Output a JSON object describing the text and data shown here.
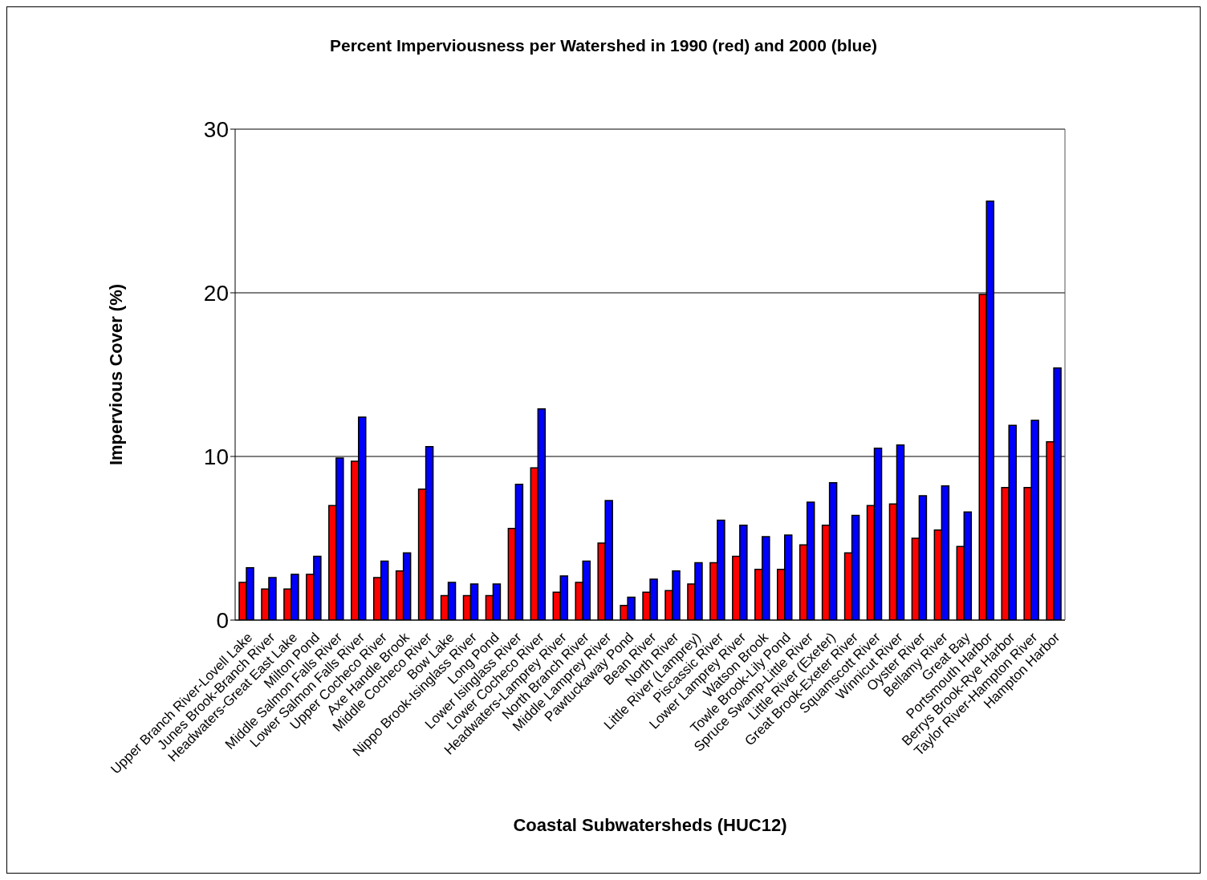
{
  "chart_data": {
    "type": "bar",
    "title": "Percent Imperviousness per Watershed in 1990 (red) and 2000 (blue)",
    "xlabel": "Coastal Subwatersheds (HUC12)",
    "ylabel": "Impervious Cover (%)",
    "categories": [
      "Upper Branch River-Lovell Lake",
      "Junes Brook-Branch River",
      "Headwaters-Great East Lake",
      "Milton Pond",
      "Middle Salmon Falls River",
      "Lower Salmon Falls River",
      "Upper Cocheco River",
      "Axe Handle Brook",
      "Middle Cocheco River",
      "Bow Lake",
      "Nippo Brook-Isinglass River",
      "Long Pond",
      "Lower Isinglass River",
      "Lower Cocheco River",
      "Headwaters-Lamprey River",
      "North Branch River",
      "Middle Lamprey River",
      "Pawtuckaway Pond",
      "Bean River",
      "North River",
      "Little River (Lamprey)",
      "Piscassic River",
      "Lower Lamprey River",
      "Watson Brook",
      "Towle Brook-Lily Pond",
      "Spruce Swamp-Little River",
      "Little River (Exeter)",
      "Great Brook-Exeter River",
      "Squamscott River",
      "Winnicut River",
      "Oyster River",
      "Bellamy River",
      "Great Bay",
      "Portsmouth Harbor",
      "Berrys Brook-Rye Harbor",
      "Taylor River-Hampton River",
      "Hampton Harbor"
    ],
    "series": [
      {
        "color": "#ff0000",
        "values": [
          2.3,
          1.9,
          1.9,
          2.8,
          7.0,
          9.7,
          2.6,
          3.0,
          8.0,
          1.5,
          1.5,
          1.5,
          5.6,
          9.3,
          1.7,
          2.3,
          4.7,
          0.9,
          1.7,
          1.8,
          2.2,
          3.5,
          3.9,
          3.1,
          3.1,
          4.6,
          5.8,
          4.1,
          7.0,
          7.1,
          5.0,
          5.5,
          4.5,
          19.9,
          8.1,
          8.1,
          10.9
        ]
      },
      {
        "color": "#0000ff",
        "values": [
          3.2,
          2.6,
          2.8,
          3.9,
          9.9,
          12.4,
          3.6,
          4.1,
          10.6,
          2.3,
          2.2,
          2.2,
          8.3,
          12.9,
          2.7,
          3.6,
          7.3,
          1.4,
          2.5,
          3.0,
          3.5,
          6.1,
          5.8,
          5.1,
          5.2,
          7.2,
          8.4,
          6.4,
          10.5,
          10.7,
          7.6,
          8.2,
          6.6,
          25.6,
          11.9,
          12.2,
          15.4
        ]
      }
    ],
    "ylim": [
      0,
      30
    ],
    "yticks": [
      0,
      10,
      20,
      30
    ],
    "grid": "y"
  }
}
